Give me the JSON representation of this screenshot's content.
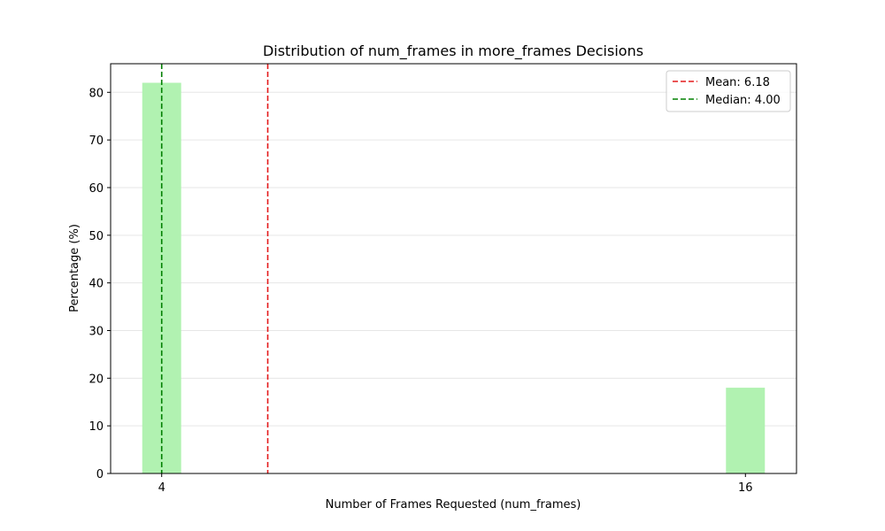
{
  "chart_data": {
    "type": "bar",
    "title": "Distribution of num_frames in more_frames Decisions",
    "xlabel": "Number of Frames Requested (num_frames)",
    "ylabel": "Percentage (%)",
    "x": [
      4,
      16
    ],
    "x_tick_labels": [
      "4",
      "16"
    ],
    "values": [
      82,
      18
    ],
    "bar_width": 0.8,
    "bar_color": "#b1f2b1",
    "xlim": [
      2.95,
      17.05
    ],
    "ylim": [
      0,
      86
    ],
    "y_ticks": [
      0,
      10,
      20,
      30,
      40,
      50,
      60,
      70,
      80
    ],
    "grid": {
      "y": true,
      "x": false,
      "color": "#e6e6e6"
    },
    "lines": [
      {
        "label": "Mean: 6.18",
        "x": 6.18,
        "color": "#e41a1c",
        "style": "dashed"
      },
      {
        "label": "Median: 4.00",
        "x": 4.0,
        "color": "#008000",
        "style": "dashed"
      }
    ],
    "legend_position": "top-right"
  }
}
